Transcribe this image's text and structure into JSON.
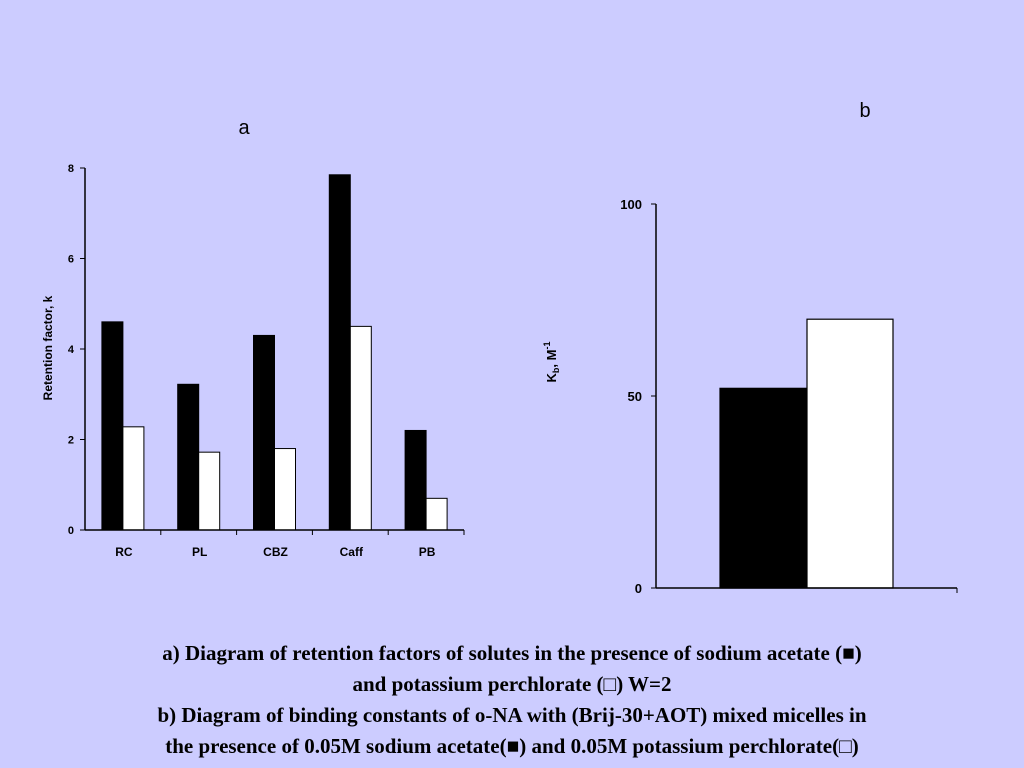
{
  "colors": {
    "background": "#ccccff",
    "series_1": "#000000",
    "series_2": "#ffffff"
  },
  "chart_data": [
    {
      "type": "bar",
      "panel_label": "a",
      "title": "",
      "xlabel": "",
      "ylabel": "Retention factor, k",
      "categories": [
        "RC",
        "PL",
        "CBZ",
        "Caff",
        "PB"
      ],
      "series": [
        {
          "color": "#000000",
          "values": [
            4.6,
            3.22,
            4.3,
            7.85,
            2.2
          ]
        },
        {
          "color": "#ffffff",
          "values": [
            2.28,
            1.72,
            1.8,
            4.5,
            0.7
          ]
        }
      ],
      "ylim": [
        0,
        8
      ],
      "yticks": [
        "0",
        "2",
        "4",
        "6",
        "8"
      ],
      "grid": false
    },
    {
      "type": "bar",
      "panel_label": "b",
      "title": "",
      "xlabel": "",
      "ylabel": "Kb, M-1",
      "ylabel_parts": {
        "main": "K",
        "sub": "b",
        "middle": ", M",
        "sup": "-1"
      },
      "categories": [
        ""
      ],
      "series": [
        {
          "color": "#000000",
          "values": [
            52
          ]
        },
        {
          "color": "#ffffff",
          "values": [
            70
          ]
        }
      ],
      "ylim": [
        0,
        100
      ],
      "yticks": [
        "0",
        "50",
        "100"
      ],
      "grid": false
    }
  ],
  "caption": {
    "line1": "a) Diagram of retention factors of solutes in the presence of sodium acetate (■)",
    "line2": "and potassium perchlorate (□) W=2",
    "line3": "b) Diagram of binding constants of o-NA with (Brij-30+AOT) mixed micelles in",
    "line4": "the presence of 0.05M sodium acetate(■) and 0.05M potassium perchlorate(□)"
  }
}
